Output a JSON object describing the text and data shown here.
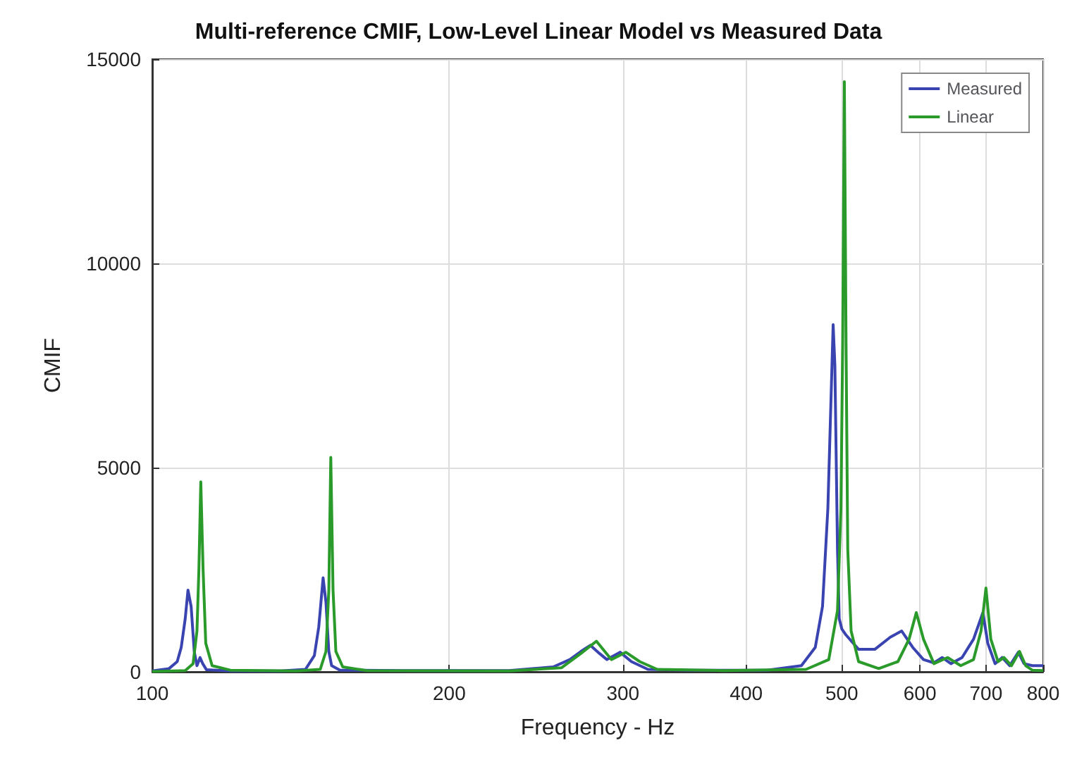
{
  "chart_data": {
    "type": "line",
    "title": "Multi-reference CMIF, Low-Level Linear Model vs Measured Data",
    "xlabel": "Frequency - Hz",
    "ylabel": "CMIF",
    "log": "x",
    "grid": true,
    "legend": "top right",
    "marker": "none",
    "line_style": "solid",
    "xlim": [
      100,
      800
    ],
    "xticks": [
      100,
      200,
      300,
      400,
      500,
      600,
      700,
      800
    ],
    "ylim": [
      0,
      15000
    ],
    "yticks": [
      0,
      5000,
      10000,
      15000
    ],
    "series": [
      {
        "name": "Measured",
        "color": "#3a44b0",
        "x": [
          100,
          104,
          106,
          107,
          108,
          108.7,
          109.5,
          110.3,
          111,
          111.8,
          112.5,
          113.5,
          120,
          135,
          143,
          146,
          147.5,
          149,
          150,
          151,
          152,
          155,
          180,
          230,
          255,
          265,
          272,
          278,
          284,
          289,
          298,
          306,
          318,
          350,
          420,
          455,
          470,
          478,
          484,
          488,
          490,
          492,
          495,
          497,
          500,
          505,
          520,
          540,
          560,
          575,
          590,
          605,
          620,
          632,
          645,
          662,
          680,
          695,
          703,
          715,
          727,
          740,
          755,
          765,
          780,
          800
        ],
        "values": [
          20,
          80,
          250,
          600,
          1300,
          2000,
          1600,
          500,
          150,
          350,
          200,
          50,
          20,
          20,
          60,
          400,
          1100,
          2300,
          1700,
          500,
          150,
          40,
          30,
          30,
          120,
          300,
          500,
          650,
          450,
          300,
          480,
          250,
          60,
          40,
          40,
          150,
          600,
          1600,
          4000,
          7000,
          8500,
          7500,
          3000,
          1300,
          1050,
          900,
          550,
          550,
          850,
          1000,
          600,
          300,
          220,
          350,
          200,
          350,
          800,
          1450,
          700,
          200,
          350,
          150,
          480,
          200,
          150,
          150
        ]
      },
      {
        "name": "Linear",
        "color": "#2a9a2a",
        "x": [
          100,
          108,
          110,
          111,
          111.5,
          112,
          112.6,
          113.3,
          115,
          120,
          140,
          148,
          150,
          151,
          151.7,
          152.5,
          153.5,
          156,
          165,
          230,
          260,
          272,
          282,
          292,
          302,
          312,
          325,
          380,
          460,
          485,
          495,
          499,
          501,
          503,
          505,
          507,
          511,
          520,
          545,
          570,
          585,
          595,
          605,
          620,
          640,
          660,
          680,
          692,
          700,
          708,
          720,
          730,
          743,
          757,
          768,
          780,
          800
        ],
        "values": [
          10,
          30,
          200,
          1000,
          2500,
          4650,
          2500,
          700,
          150,
          40,
          20,
          60,
          500,
          2000,
          5250,
          2000,
          500,
          120,
          30,
          20,
          100,
          450,
          750,
          300,
          480,
          250,
          60,
          30,
          60,
          300,
          1500,
          4000,
          8000,
          14450,
          8000,
          3000,
          1000,
          250,
          80,
          250,
          800,
          1450,
          800,
          200,
          350,
          150,
          300,
          1000,
          2050,
          800,
          250,
          350,
          150,
          500,
          150,
          40,
          30
        ]
      }
    ]
  }
}
